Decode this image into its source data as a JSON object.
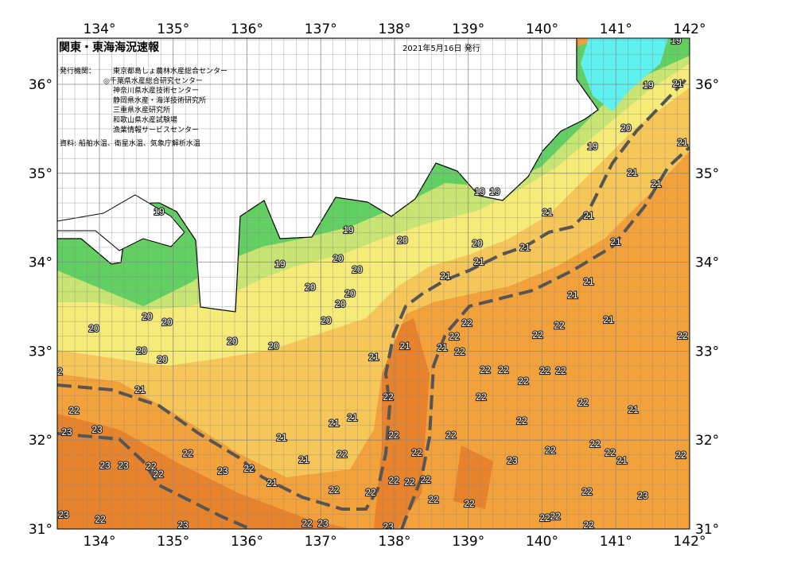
{
  "header": {
    "title": "関東・東海海況速報",
    "date": "2021年5月16日 発行"
  },
  "publisher": {
    "label": "発行機関：",
    "items": [
      "東京都島しょ農林水産総合センター",
      "◎千葉県水産総合研究センター",
      "神奈川県水産技術センター",
      "静岡県水産・海洋技術研究所",
      "三重県水産研究所",
      "和歌山県水産試験場",
      "漁業情報サービスセンター"
    ]
  },
  "source": "資料: 船舶水温、衛星水温、気象庁解析水温",
  "longitude_labels": [
    "134°",
    "135°",
    "136°",
    "137°",
    "138°",
    "139°",
    "140°",
    "141°",
    "142°"
  ],
  "latitude_labels": [
    "36°",
    "35°",
    "34°",
    "33°",
    "32°",
    "31°"
  ],
  "isotherm_labels": [
    19,
    19,
    21,
    20,
    19,
    21,
    21,
    21,
    21,
    21,
    19,
    19,
    19,
    19,
    20,
    20,
    21,
    20,
    21,
    19,
    20,
    20,
    20,
    20,
    20,
    20,
    20,
    20,
    20,
    20,
    20,
    20,
    21,
    21,
    21,
    21,
    21,
    22,
    22,
    22,
    22,
    21,
    21,
    22,
    21,
    22,
    22,
    22,
    22,
    22,
    21,
    22,
    22,
    22,
    21,
    21,
    22,
    21,
    22,
    23,
    23,
    22,
    21,
    22,
    22,
    22,
    22,
    22,
    21,
    22,
    22,
    22,
    21,
    22,
    23,
    23,
    23,
    22,
    23,
    22,
    21,
    22,
    22,
    22,
    22,
    22,
    22,
    22,
    22,
    23,
    22,
    23,
    23,
    22,
    23,
    23,
    22,
    22,
    22,
    22,
    22
  ]
}
